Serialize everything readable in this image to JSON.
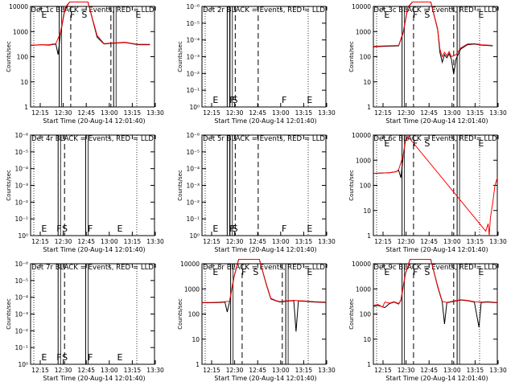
{
  "figure": {
    "xlabel": "Start Time (20-Aug-14 12:01:40)",
    "ylabel": "Counts/sec",
    "x_ticks": [
      "12:15",
      "12:30",
      "12:45",
      "13:00",
      "13:15",
      "13:30"
    ],
    "colors": {
      "events": "#000000",
      "lld": "#ff0000",
      "axes": "#000000"
    }
  },
  "chart_data": [
    {
      "title": "Det 1c BLACK = Events, RED = LLD",
      "type": "line",
      "yscale": "log",
      "y_ticks": [
        "1",
        "10",
        "100",
        "1000",
        "10000"
      ],
      "markers": [
        {
          "label": "E",
          "t": 12.0
        },
        {
          "label": "F",
          "t": 24.5
        },
        {
          "label": "S",
          "t": 29.5
        },
        {
          "label": "E",
          "t": 53.0
        }
      ],
      "dashed_lines": [
        25.5,
        43.0
      ],
      "solid_lines": [
        20.5,
        44.2
      ],
      "series": [
        {
          "name": "Events",
          "color": "#000000",
          "points": [
            [
              8,
              280
            ],
            [
              13,
              300
            ],
            [
              16,
              290
            ],
            [
              19,
              320
            ],
            [
              20,
              120
            ],
            [
              21,
              800
            ],
            [
              23,
              8000
            ],
            [
              25,
              15000
            ],
            [
              33,
              15000
            ],
            [
              37,
              600
            ],
            [
              40,
              320
            ],
            [
              43,
              340
            ],
            [
              46,
              350
            ],
            [
              49,
              370
            ],
            [
              52,
              330
            ],
            [
              55,
              300
            ],
            [
              60,
              300
            ]
          ]
        },
        {
          "name": "LLD",
          "color": "#ff0000",
          "points": [
            [
              8,
              290
            ],
            [
              13,
              300
            ],
            [
              16,
              300
            ],
            [
              19,
              330
            ],
            [
              21,
              900
            ],
            [
              23,
              9000
            ],
            [
              25,
              15000
            ],
            [
              33,
              15000
            ],
            [
              37,
              700
            ],
            [
              40,
              330
            ],
            [
              43,
              350
            ],
            [
              46,
              360
            ],
            [
              49,
              380
            ],
            [
              52,
              340
            ],
            [
              55,
              310
            ],
            [
              60,
              310
            ]
          ]
        }
      ]
    },
    {
      "title": "Det 2r BLACK = Events, RED = LLD",
      "type": "line",
      "yscale": "log",
      "y_ticks": [
        "10⁰",
        "10⁻¹",
        "10⁻²",
        "10⁻³",
        "10⁻⁴",
        "10⁻⁵",
        "10⁻⁶"
      ],
      "markers": [
        {
          "label": "E",
          "t": 12.0
        },
        {
          "label": "F",
          "t": 19.3
        },
        {
          "label": "S",
          "t": 20.5
        },
        {
          "label": "F",
          "t": 42.0
        },
        {
          "label": "E",
          "t": 53.0
        }
      ],
      "dashed_lines": [
        22.5,
        32.5
      ],
      "solid_lines": [
        19.0,
        20.2
      ],
      "series": []
    },
    {
      "title": "Det 3c BLACK = Events, RED = LLD",
      "type": "line",
      "yscale": "log",
      "y_ticks": [
        "1",
        "10",
        "100",
        "1000",
        "10000"
      ],
      "markers": [
        {
          "label": "E",
          "t": 12.0
        },
        {
          "label": "F",
          "t": 24.5
        },
        {
          "label": "S",
          "t": 29.5
        },
        {
          "label": "E",
          "t": 53.0
        }
      ],
      "dashed_lines": [
        25.5,
        43.0
      ],
      "solid_lines": [
        20.5,
        44.5
      ],
      "series": [
        {
          "name": "Events",
          "color": "#000000",
          "points": [
            [
              8,
              250
            ],
            [
              14,
              260
            ],
            [
              19,
              270
            ],
            [
              21,
              900
            ],
            [
              23,
              9000
            ],
            [
              25,
              15000
            ],
            [
              33,
              15000
            ],
            [
              36,
              1200
            ],
            [
              37,
              150
            ],
            [
              38,
              60
            ],
            [
              39,
              120
            ],
            [
              40,
              90
            ],
            [
              41,
              130
            ],
            [
              42,
              80
            ],
            [
              43,
              20
            ],
            [
              44,
              80
            ],
            [
              46,
              200
            ],
            [
              49,
              300
            ],
            [
              52,
              320
            ],
            [
              55,
              290
            ],
            [
              60,
              270
            ]
          ]
        },
        {
          "name": "LLD",
          "color": "#ff0000",
          "points": [
            [
              8,
              260
            ],
            [
              14,
              270
            ],
            [
              19,
              280
            ],
            [
              21,
              950
            ],
            [
              23,
              9500
            ],
            [
              25,
              15000
            ],
            [
              33,
              15000
            ],
            [
              36,
              1300
            ],
            [
              37,
              200
            ],
            [
              38,
              100
            ],
            [
              39,
              150
            ],
            [
              40,
              110
            ],
            [
              41,
              160
            ],
            [
              42,
              100
            ],
            [
              44,
              120
            ],
            [
              46,
              220
            ],
            [
              49,
              320
            ],
            [
              52,
              330
            ],
            [
              55,
              300
            ],
            [
              60,
              280
            ]
          ]
        }
      ]
    },
    {
      "title": "Det 4r BLACK = Events, RED = LLD",
      "type": "line",
      "yscale": "log",
      "y_ticks": [
        "10⁰",
        "10⁻¹",
        "10⁻²",
        "10⁻³",
        "10⁻⁴",
        "10⁻⁵",
        "10⁻⁶"
      ],
      "markers": [
        {
          "label": "E",
          "t": 12.0
        },
        {
          "label": "F",
          "t": 18.6
        },
        {
          "label": "S",
          "t": 21.0
        },
        {
          "label": "F",
          "t": 32.2
        },
        {
          "label": "E",
          "t": 45.0
        }
      ],
      "dashed_lines": [
        22.8
      ],
      "solid_lines": [
        20.0,
        32.0
      ],
      "series": []
    },
    {
      "title": "Det 5r BLACK = Events, RED = LLD",
      "type": "line",
      "yscale": "log",
      "y_ticks": [
        "10⁰",
        "10⁻¹",
        "10⁻²",
        "10⁻³",
        "10⁻⁴",
        "10⁻⁵",
        "10⁻⁶"
      ],
      "markers": [
        {
          "label": "E",
          "t": 12.0
        },
        {
          "label": "F",
          "t": 19.3
        },
        {
          "label": "S",
          "t": 20.5
        },
        {
          "label": "F",
          "t": 42.0
        },
        {
          "label": "E",
          "t": 53.0
        }
      ],
      "dashed_lines": [
        22.5,
        32.5
      ],
      "solid_lines": [
        19.0,
        20.2
      ],
      "series": []
    },
    {
      "title": "Det 6c BLACK = Events, RED = LLD",
      "type": "line",
      "yscale": "log",
      "y_ticks": [
        "1",
        "10",
        "100",
        "1000",
        "10000"
      ],
      "markers": [
        {
          "label": "E",
          "t": 12.0
        },
        {
          "label": "F",
          "t": 24.5
        },
        {
          "label": "S",
          "t": 29.5
        },
        {
          "label": "E",
          "t": 53.0
        }
      ],
      "dashed_lines": [
        25.5,
        43.0
      ],
      "solid_lines": [
        20.5,
        44.5
      ],
      "series": [
        {
          "name": "Events",
          "color": "#000000",
          "points": [
            [
              8,
              300
            ],
            [
              12,
              310
            ],
            [
              15,
              320
            ],
            [
              18,
              350
            ],
            [
              19,
              400
            ],
            [
              20,
              200
            ],
            [
              21,
              1500
            ],
            [
              22,
              6000
            ],
            [
              23,
              8000
            ]
          ]
        },
        {
          "name": "LLD",
          "color": "#ff0000",
          "points": [
            [
              8,
              300
            ],
            [
              12,
              310
            ],
            [
              15,
              320
            ],
            [
              18,
              350
            ],
            [
              19,
              420
            ],
            [
              21,
              1600
            ],
            [
              22,
              6500
            ],
            [
              23,
              9000
            ],
            [
              57,
              1.5
            ],
            [
              58,
              3
            ],
            [
              58.5,
              1
            ],
            [
              59,
              5
            ],
            [
              60,
              20
            ],
            [
              61,
              100
            ],
            [
              62,
              200
            ]
          ]
        }
      ]
    },
    {
      "title": "Det 7r BLACK = Events, RED = LLD",
      "type": "line",
      "yscale": "log",
      "y_ticks": [
        "10⁰",
        "10⁻¹",
        "10⁻²",
        "10⁻³",
        "10⁻⁴",
        "10⁻⁵",
        "10⁻⁶"
      ],
      "markers": [
        {
          "label": "E",
          "t": 12.0
        },
        {
          "label": "F",
          "t": 18.6
        },
        {
          "label": "S",
          "t": 21.0
        },
        {
          "label": "F",
          "t": 32.2
        },
        {
          "label": "E",
          "t": 45.0
        }
      ],
      "dashed_lines": [
        22.8
      ],
      "solid_lines": [
        20.0,
        32.0
      ],
      "series": []
    },
    {
      "title": "Det 8r BLACK = Events, RED = LLD",
      "type": "line",
      "yscale": "log",
      "y_ticks": [
        "1",
        "10",
        "100",
        "1000",
        "10000"
      ],
      "markers": [
        {
          "label": "E",
          "t": 12.0
        },
        {
          "label": "F",
          "t": 24.5
        },
        {
          "label": "S",
          "t": 29.5
        },
        {
          "label": "E",
          "t": 53.0
        }
      ],
      "dashed_lines": [
        25.5,
        43.0
      ],
      "solid_lines": [
        20.5,
        44.5
      ],
      "series": [
        {
          "name": "Events",
          "color": "#000000",
          "points": [
            [
              8,
              280
            ],
            [
              12,
              280
            ],
            [
              16,
              290
            ],
            [
              18,
              300
            ],
            [
              19,
              120
            ],
            [
              20,
              300
            ],
            [
              22,
              3000
            ],
            [
              24,
              15000
            ],
            [
              33,
              15000
            ],
            [
              36,
              1500
            ],
            [
              38,
              400
            ],
            [
              40,
              340
            ],
            [
              42,
              300
            ],
            [
              44,
              320
            ],
            [
              46,
              330
            ],
            [
              48,
              340
            ],
            [
              49,
              20
            ],
            [
              50,
              330
            ],
            [
              53,
              320
            ],
            [
              57,
              300
            ],
            [
              62,
              290
            ]
          ]
        },
        {
          "name": "LLD",
          "color": "#ff0000",
          "points": [
            [
              8,
              290
            ],
            [
              12,
              290
            ],
            [
              16,
              300
            ],
            [
              18,
              310
            ],
            [
              20,
              320
            ],
            [
              22,
              3200
            ],
            [
              24,
              15000
            ],
            [
              33,
              15000
            ],
            [
              36,
              1600
            ],
            [
              38,
              420
            ],
            [
              40,
              350
            ],
            [
              42,
              310
            ],
            [
              44,
              330
            ],
            [
              46,
              340
            ],
            [
              48,
              350
            ],
            [
              50,
              340
            ],
            [
              53,
              330
            ],
            [
              57,
              310
            ],
            [
              62,
              300
            ]
          ]
        }
      ]
    },
    {
      "title": "Det 9c BLACK = Events, RED = LLD",
      "type": "line",
      "yscale": "log",
      "y_ticks": [
        "1",
        "10",
        "100",
        "1000",
        "10000"
      ],
      "markers": [
        {
          "label": "E",
          "t": 12.0
        },
        {
          "label": "F",
          "t": 24.5
        },
        {
          "label": "S",
          "t": 29.5
        },
        {
          "label": "E",
          "t": 53.0
        }
      ],
      "dashed_lines": [
        25.5,
        43.0
      ],
      "solid_lines": [
        20.5,
        44.5
      ],
      "series": [
        {
          "name": "Events",
          "color": "#000000",
          "points": [
            [
              8,
              200
            ],
            [
              10,
              220
            ],
            [
              13,
              180
            ],
            [
              15,
              260
            ],
            [
              17,
              300
            ],
            [
              19,
              250
            ],
            [
              20,
              350
            ],
            [
              22,
              4000
            ],
            [
              24,
              15000
            ],
            [
              33,
              15000
            ],
            [
              36,
              1200
            ],
            [
              38,
              300
            ],
            [
              39,
              40
            ],
            [
              40,
              280
            ],
            [
              43,
              320
            ],
            [
              46,
              360
            ],
            [
              49,
              340
            ],
            [
              52,
              300
            ],
            [
              54,
              30
            ],
            [
              55,
              290
            ],
            [
              58,
              300
            ],
            [
              62,
              280
            ]
          ]
        },
        {
          "name": "LLD",
          "color": "#ff0000",
          "points": [
            [
              8,
              220
            ],
            [
              10,
              240
            ],
            [
              12,
              190
            ],
            [
              13,
              300
            ],
            [
              15,
              270
            ],
            [
              17,
              310
            ],
            [
              19,
              260
            ],
            [
              20,
              360
            ],
            [
              22,
              4200
            ],
            [
              24,
              15000
            ],
            [
              33,
              15000
            ],
            [
              36,
              1300
            ],
            [
              38,
              320
            ],
            [
              40,
              290
            ],
            [
              43,
              330
            ],
            [
              46,
              370
            ],
            [
              49,
              350
            ],
            [
              52,
              310
            ],
            [
              55,
              300
            ],
            [
              58,
              310
            ],
            [
              62,
              290
            ]
          ]
        }
      ]
    }
  ]
}
